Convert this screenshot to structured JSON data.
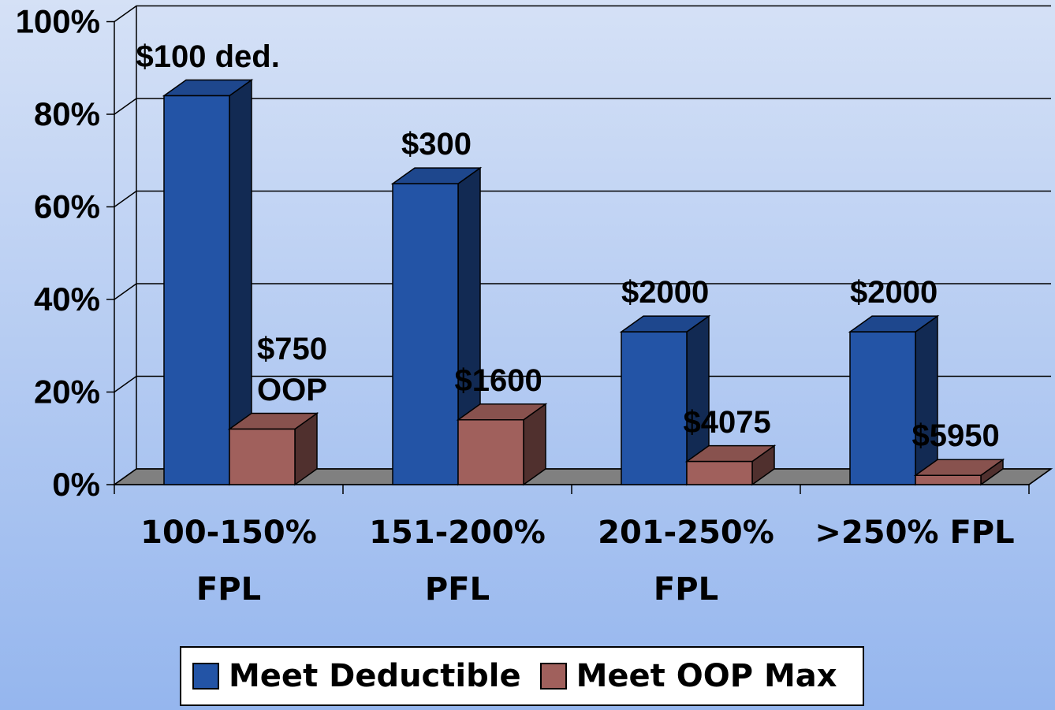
{
  "chart_data": {
    "type": "bar3d",
    "categories": [
      "100-150% FPL",
      "151-200% PFL",
      "201-250% FPL",
      ">250% FPL"
    ],
    "series": [
      {
        "name": "Meet Deductible",
        "color": "#2354a6",
        "values": [
          84,
          65,
          33,
          33
        ],
        "annotations": [
          "$100 ded.",
          "$300",
          "$2000",
          "$2000"
        ]
      },
      {
        "name": "Meet OOP Max",
        "color": "#a0605c",
        "values": [
          12,
          14,
          5,
          2
        ],
        "annotations": [
          "$750 OOP",
          "$1600",
          "$4075",
          "$5950"
        ]
      }
    ],
    "ylim": [
      0,
      100
    ],
    "yticks": [
      {
        "value": 0,
        "label": "0%"
      },
      {
        "value": 20,
        "label": "20%"
      },
      {
        "value": 40,
        "label": "40%"
      },
      {
        "value": 60,
        "label": "60%"
      },
      {
        "value": 80,
        "label": "80%"
      },
      {
        "value": 100,
        "label": "100%"
      }
    ],
    "grid": true,
    "legend": "bottom"
  }
}
